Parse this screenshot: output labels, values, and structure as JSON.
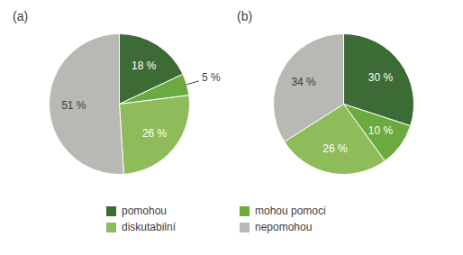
{
  "chart_data": [
    {
      "type": "pie",
      "title": "(a)",
      "categories": [
        "pomohou",
        "mohou pomoci",
        "diskutabilní",
        "nepomohou"
      ],
      "values": [
        18,
        5,
        26,
        51
      ],
      "value_labels": [
        "18 %",
        "5 %",
        "26 %",
        "51 %"
      ],
      "colors": [
        "#3d6b35",
        "#6aaa3f",
        "#8fbc5a",
        "#b8b8b4"
      ],
      "data_labels": true,
      "legend": "bottom"
    },
    {
      "type": "pie",
      "title": "(b)",
      "categories": [
        "pomohou",
        "mohou pomoci",
        "diskutabilní",
        "nepomohou"
      ],
      "values": [
        30,
        10,
        26,
        34
      ],
      "value_labels": [
        "30 %",
        "10 %",
        "26 %",
        "34 %"
      ],
      "colors": [
        "#3d6b35",
        "#6aaa3f",
        "#8fbc5a",
        "#b8b8b4"
      ],
      "data_labels": true,
      "legend": "bottom"
    }
  ]
}
